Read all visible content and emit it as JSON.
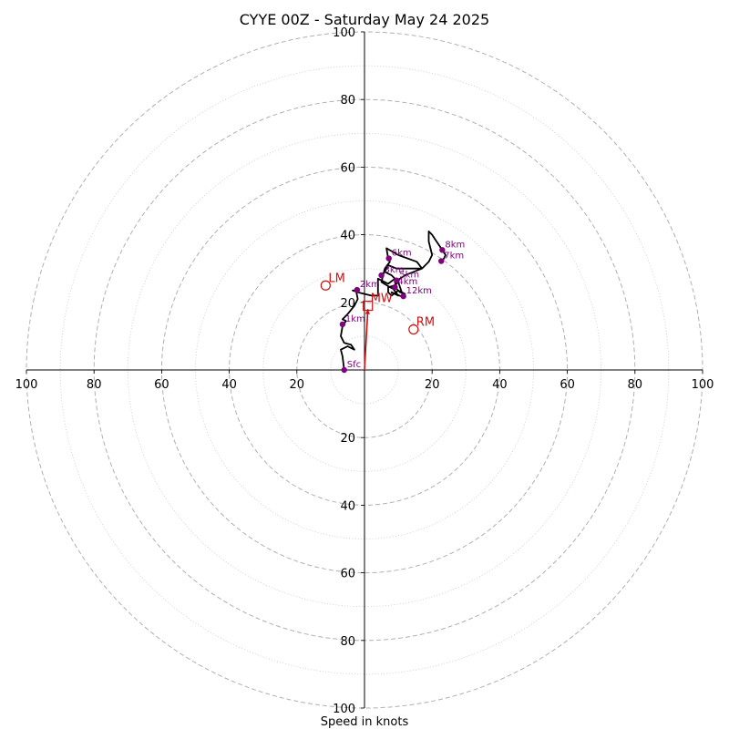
{
  "chart_data": {
    "type": "hodograph",
    "title": "CYYE 00Z - Saturday May 24 2025",
    "xlabel": "Speed in knots",
    "speed_range": [
      0,
      100
    ],
    "major_rings": [
      20,
      40,
      60,
      80,
      100
    ],
    "minor_rings": [
      10,
      30,
      50,
      70,
      90
    ],
    "x_tick_labels": [
      "100",
      "80",
      "60",
      "40",
      "20",
      "20",
      "40",
      "60",
      "80",
      "100"
    ],
    "y_tick_labels": [
      "100",
      "80",
      "60",
      "40",
      "20",
      "20",
      "40",
      "60",
      "80",
      "100"
    ],
    "x_tick_values": [
      -100,
      -80,
      -60,
      -40,
      -20,
      20,
      40,
      60,
      80,
      100
    ],
    "y_tick_values": [
      100,
      80,
      60,
      40,
      20,
      -20,
      -40,
      -60,
      -80,
      -100
    ],
    "hodograph_path": [
      [
        -6,
        0
      ],
      [
        -6.5,
        4
      ],
      [
        -7,
        6
      ],
      [
        -5,
        7
      ],
      [
        -3,
        6
      ],
      [
        -4,
        7.5
      ],
      [
        -6,
        8
      ],
      [
        -7,
        10
      ],
      [
        -6.5,
        13
      ],
      [
        -5.5,
        14.5
      ],
      [
        -6.5,
        15
      ],
      [
        -5,
        16.5
      ],
      [
        -3,
        19
      ],
      [
        -2,
        21
      ],
      [
        -2.5,
        23.5
      ],
      [
        -3.5,
        23.5
      ],
      [
        -2,
        23
      ],
      [
        2,
        22
      ],
      [
        4,
        22
      ],
      [
        4,
        27
      ],
      [
        7,
        25.5
      ],
      [
        9,
        27
      ],
      [
        8,
        28
      ],
      [
        6,
        29
      ],
      [
        7,
        31
      ],
      [
        9.5,
        30
      ],
      [
        17,
        30
      ],
      [
        12,
        28
      ],
      [
        9,
        26
      ],
      [
        9.5,
        24
      ],
      [
        10.5,
        23
      ],
      [
        12,
        22.5
      ],
      [
        10,
        23.5
      ],
      [
        8,
        22
      ],
      [
        7,
        23
      ],
      [
        7,
        24.5
      ],
      [
        9,
        25
      ],
      [
        10,
        26
      ],
      [
        11.5,
        21.5
      ],
      [
        8,
        23
      ],
      [
        10,
        22
      ],
      [
        8.5,
        24
      ],
      [
        7.5,
        24.5
      ],
      [
        5,
        26
      ],
      [
        6,
        30
      ],
      [
        7.5,
        32
      ],
      [
        7,
        33
      ],
      [
        6.5,
        36
      ],
      [
        10,
        34
      ],
      [
        15.5,
        32
      ],
      [
        17,
        30
      ],
      [
        19,
        32
      ],
      [
        20,
        34
      ],
      [
        19,
        38
      ],
      [
        19,
        41
      ],
      [
        20,
        40
      ],
      [
        21,
        38.5
      ],
      [
        22,
        37
      ],
      [
        23,
        35.5
      ],
      [
        24,
        34
      ],
      [
        23.5,
        33
      ],
      [
        22.5,
        32
      ]
    ],
    "height_markers": [
      {
        "label": "Sfc",
        "u": -6,
        "v": 0
      },
      {
        "label": "1km",
        "u": -6.5,
        "v": 13.5
      },
      {
        "label": "2km",
        "u": -2.2,
        "v": 23.7
      },
      {
        "label": "3km",
        "u": 5,
        "v": 28
      },
      {
        "label": "4km",
        "u": 9,
        "v": 24.5
      },
      {
        "label": "5km",
        "u": 9.5,
        "v": 26.5
      },
      {
        "label": "6km",
        "u": 7.2,
        "v": 33
      },
      {
        "label": "7km",
        "u": 22.7,
        "v": 32.2
      },
      {
        "label": "8km",
        "u": 23,
        "v": 35.5
      },
      {
        "label": "12km",
        "u": 11.5,
        "v": 21.8
      }
    ],
    "storm_motion": [
      {
        "label": "LM",
        "u": -11.5,
        "v": 25,
        "marker": "circle"
      },
      {
        "label": "MW",
        "u": 1,
        "v": 19,
        "marker": "square"
      },
      {
        "label": "RM",
        "u": 14.5,
        "v": 12,
        "marker": "circle"
      }
    ],
    "shear_vector": {
      "from": [
        0,
        0
      ],
      "to": [
        1,
        18
      ]
    },
    "colors": {
      "hodograph": "#000000",
      "height_markers": "#800080",
      "storm_motion": "#cc1111",
      "major_ring": "#b0b0b0",
      "minor_ring": "#c8c8c8"
    }
  }
}
